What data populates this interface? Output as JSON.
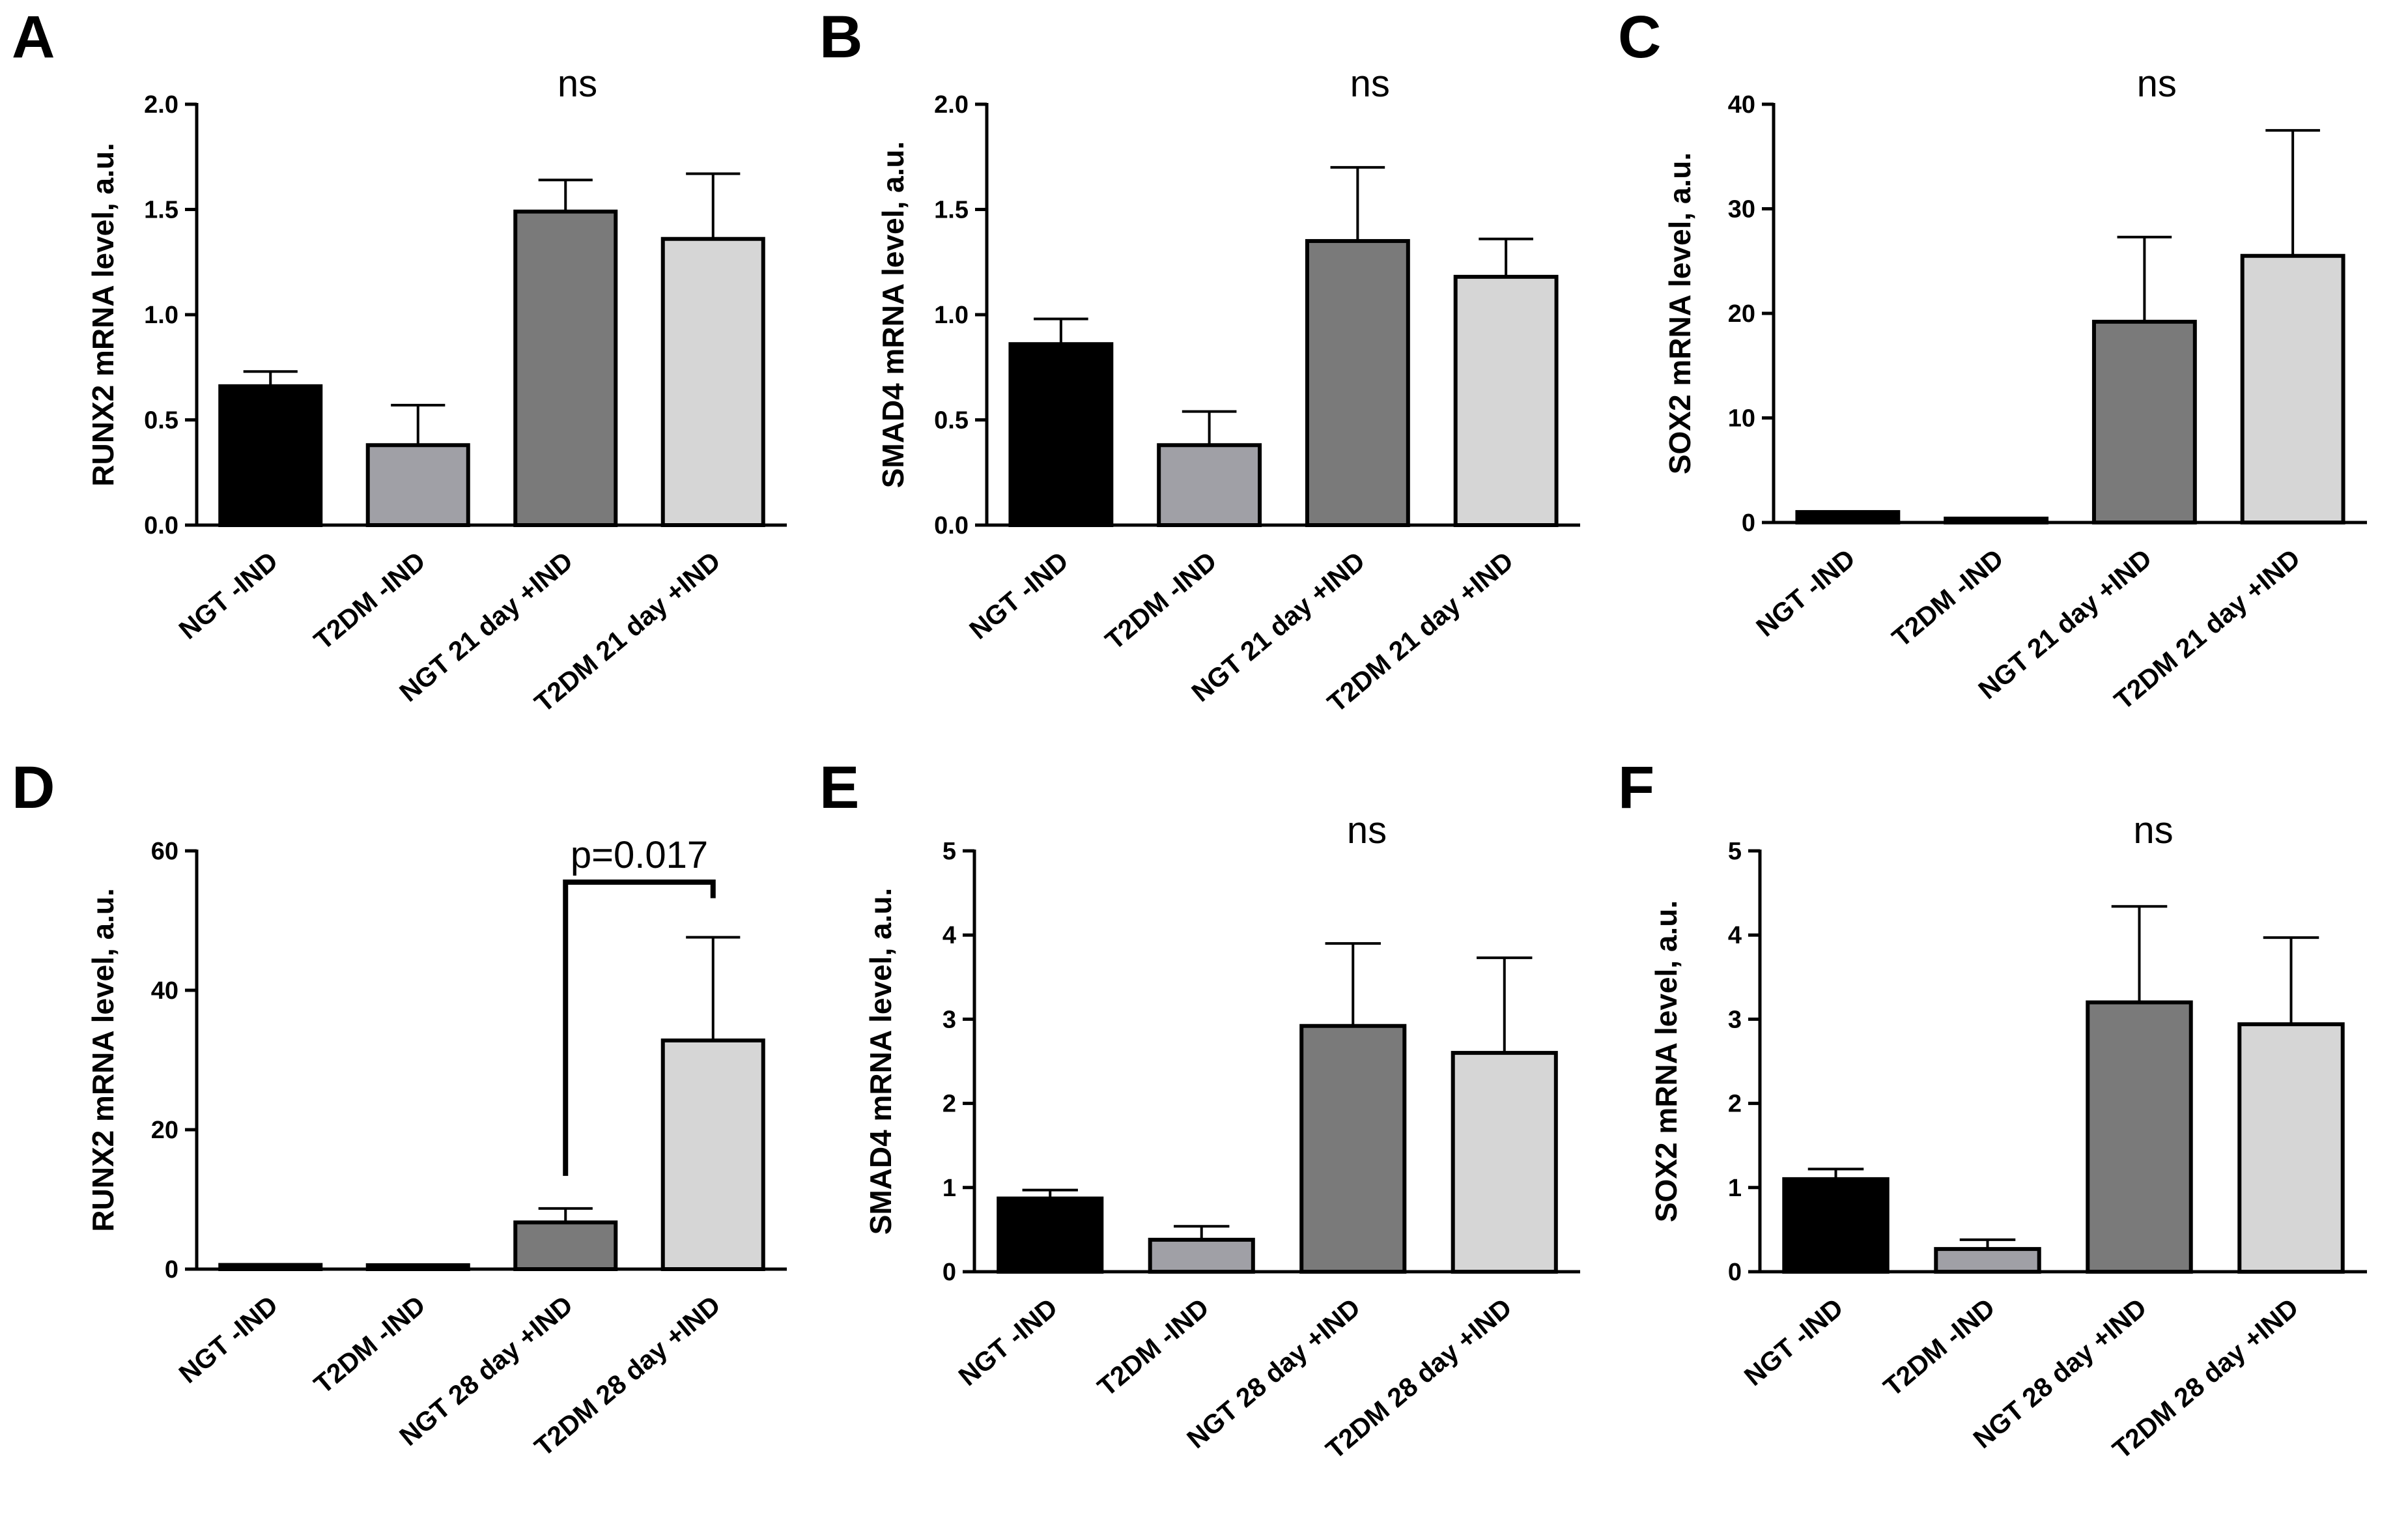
{
  "figure": {
    "bar_colors": [
      "#000000",
      "#a0a0a6",
      "#7a7a7a",
      "#d6d6d6"
    ]
  },
  "chart_data": [
    {
      "panel": "A",
      "type": "bar",
      "ylabel": "RUNX2 mRNA level, a.u.",
      "ylim": [
        0,
        2.0
      ],
      "yticks": [
        "0.0",
        "0.5",
        "1.0",
        "1.5",
        "2.0"
      ],
      "categories": [
        "NGT -IND",
        "T2DM -IND",
        "NGT 21 day +IND",
        "T2DM 21 day +IND"
      ],
      "values": [
        0.66,
        0.38,
        1.49,
        1.36
      ],
      "errors": [
        0.07,
        0.19,
        0.15,
        0.31
      ],
      "annotation": "ns"
    },
    {
      "panel": "B",
      "type": "bar",
      "ylabel": "SMAD4 mRNA level, a.u.",
      "ylim": [
        0,
        2.0
      ],
      "yticks": [
        "0.0",
        "0.5",
        "1.0",
        "1.5",
        "2.0"
      ],
      "categories": [
        "NGT -IND",
        "T2DM -IND",
        "NGT 21 day +IND",
        "T2DM 21 day +IND"
      ],
      "values": [
        0.86,
        0.38,
        1.35,
        1.18
      ],
      "errors": [
        0.12,
        0.16,
        0.35,
        0.18
      ],
      "annotation": "ns"
    },
    {
      "panel": "C",
      "type": "bar",
      "ylabel": "SOX2 mRNA level, a.u.",
      "ylim": [
        0,
        40
      ],
      "yticks": [
        "0",
        "10",
        "20",
        "30",
        "40"
      ],
      "categories": [
        "NGT -IND",
        "T2DM -IND",
        "NGT 21 day +IND",
        "T2DM 21 day +IND"
      ],
      "values": [
        1.0,
        0.3,
        19.2,
        25.5
      ],
      "errors": [
        0,
        0,
        8.1,
        12.0
      ],
      "annotation": "ns"
    },
    {
      "panel": "D",
      "type": "bar",
      "ylabel": "RUNX2 mRNA level, a.u.",
      "ylim": [
        0,
        60
      ],
      "yticks": [
        "0",
        "20",
        "40",
        "60"
      ],
      "categories": [
        "NGT -IND",
        "T2DM -IND",
        "NGT 28 day +IND",
        "T2DM 28 day +IND"
      ],
      "values": [
        0.6,
        0.4,
        6.7,
        32.8
      ],
      "errors": [
        0,
        0,
        2.0,
        14.8
      ],
      "annotation": "p=0.017",
      "bracket": [
        2,
        3
      ]
    },
    {
      "panel": "E",
      "type": "bar",
      "ylabel": "SMAD4 mRNA level, a.u.",
      "ylim": [
        0,
        5
      ],
      "yticks": [
        "0",
        "1",
        "2",
        "3",
        "4",
        "5"
      ],
      "categories": [
        "NGT -IND",
        "T2DM -IND",
        "NGT 28 day +IND",
        "T2DM 28 day +IND"
      ],
      "values": [
        0.87,
        0.38,
        2.92,
        2.6
      ],
      "errors": [
        0.1,
        0.16,
        0.98,
        1.13
      ],
      "annotation": "ns"
    },
    {
      "panel": "F",
      "type": "bar",
      "ylabel": "SOX2 mRNA level, a.u.",
      "ylim": [
        0,
        5
      ],
      "yticks": [
        "0",
        "1",
        "2",
        "3",
        "4",
        "5"
      ],
      "categories": [
        "NGT -IND",
        "T2DM -IND",
        "NGT 28 day +IND",
        "T2DM 28 day +IND"
      ],
      "values": [
        1.1,
        0.27,
        3.2,
        2.94
      ],
      "errors": [
        0.12,
        0.11,
        1.14,
        1.03
      ],
      "annotation": "ns"
    }
  ]
}
